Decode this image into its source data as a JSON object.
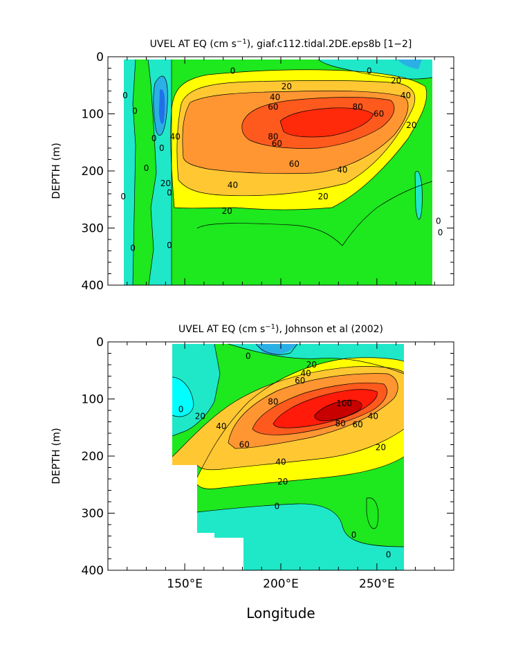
{
  "chart_data": [
    {
      "type": "contour",
      "title_prefix": "UVEL AT EQ (cm s",
      "title_exp": "−1",
      "title_suffix": "), giaf.c112.tidal.2DE.eps8b [1−2]",
      "ylabel": "DEPTH (m)",
      "xlabel": "",
      "xlim": [
        110,
        290
      ],
      "ylim": [
        400,
        0
      ],
      "y_ticks": [
        0,
        100,
        200,
        300,
        400
      ],
      "x_tick_labels": [],
      "data_extent_x": [
        118,
        280
      ],
      "data_extent_y": [
        10,
        400
      ],
      "contour_levels": [
        0,
        20,
        40,
        60,
        80
      ],
      "contour_labels": [
        {
          "text": "0",
          "x": 118,
          "y": 245
        },
        {
          "text": "0",
          "x": 119,
          "y": 68
        },
        {
          "text": "0",
          "x": 124,
          "y": 95
        },
        {
          "text": "0",
          "x": 134,
          "y": 143
        },
        {
          "text": "0",
          "x": 130,
          "y": 195
        },
        {
          "text": "0",
          "x": 123,
          "y": 335
        },
        {
          "text": "0",
          "x": 142,
          "y": 330
        },
        {
          "text": "0",
          "x": 138,
          "y": 160
        },
        {
          "text": "0",
          "x": 175,
          "y": 25
        },
        {
          "text": "0",
          "x": 246,
          "y": 25
        },
        {
          "text": "0",
          "x": 142,
          "y": 238
        },
        {
          "text": "0",
          "x": 282,
          "y": 288
        },
        {
          "text": "20",
          "x": 203,
          "y": 52
        },
        {
          "text": "40",
          "x": 197,
          "y": 71
        },
        {
          "text": "60",
          "x": 196,
          "y": 88
        },
        {
          "text": "80",
          "x": 240,
          "y": 88
        },
        {
          "text": "80",
          "x": 196,
          "y": 140
        },
        {
          "text": "60",
          "x": 198,
          "y": 152
        },
        {
          "text": "60",
          "x": 251,
          "y": 100
        },
        {
          "text": "40",
          "x": 265,
          "y": 68
        },
        {
          "text": "40",
          "x": 145,
          "y": 140
        },
        {
          "text": "20",
          "x": 140,
          "y": 222
        },
        {
          "text": "20",
          "x": 268,
          "y": 120
        },
        {
          "text": "20",
          "x": 260,
          "y": 42
        },
        {
          "text": "60",
          "x": 207,
          "y": 188
        },
        {
          "text": "40",
          "x": 232,
          "y": 198
        },
        {
          "text": "40",
          "x": 175,
          "y": 225
        },
        {
          "text": "20",
          "x": 222,
          "y": 245
        },
        {
          "text": "20",
          "x": 172,
          "y": 270
        },
        {
          "text": "0",
          "x": 283,
          "y": 308
        }
      ]
    },
    {
      "type": "contour",
      "title_prefix": "UVEL AT EQ (cm s",
      "title_exp": "−1",
      "title_suffix": "), Johnson et al (2002)",
      "ylabel": "DEPTH (m)",
      "xlabel": "Longitude",
      "xlim": [
        110,
        290
      ],
      "ylim": [
        400,
        0
      ],
      "y_ticks": [
        0,
        100,
        200,
        300,
        400
      ],
      "x_ticks": [
        150,
        200,
        250
      ],
      "x_tick_labels": [
        "150°E",
        "200°E",
        "250°E"
      ],
      "data_extent_x": [
        143,
        265
      ],
      "data_extent_y": [
        10,
        400
      ],
      "contour_levels": [
        0,
        20,
        40,
        60,
        80,
        100
      ],
      "contour_labels": [
        {
          "text": "0",
          "x": 183,
          "y": 25
        },
        {
          "text": "0",
          "x": 148,
          "y": 118
        },
        {
          "text": "20",
          "x": 158,
          "y": 130
        },
        {
          "text": "40",
          "x": 169,
          "y": 148
        },
        {
          "text": "60",
          "x": 181,
          "y": 180
        },
        {
          "text": "80",
          "x": 196,
          "y": 105
        },
        {
          "text": "80",
          "x": 231,
          "y": 143
        },
        {
          "text": "60",
          "x": 210,
          "y": 68
        },
        {
          "text": "40",
          "x": 213,
          "y": 55
        },
        {
          "text": "20",
          "x": 216,
          "y": 40
        },
        {
          "text": "100",
          "x": 233,
          "y": 108
        },
        {
          "text": "60",
          "x": 240,
          "y": 145
        },
        {
          "text": "40",
          "x": 248,
          "y": 130
        },
        {
          "text": "40",
          "x": 200,
          "y": 210
        },
        {
          "text": "20",
          "x": 252,
          "y": 185
        },
        {
          "text": "20",
          "x": 201,
          "y": 245
        },
        {
          "text": "0",
          "x": 198,
          "y": 288
        },
        {
          "text": "0",
          "x": 238,
          "y": 338
        },
        {
          "text": "0",
          "x": 256,
          "y": 373
        }
      ]
    }
  ]
}
